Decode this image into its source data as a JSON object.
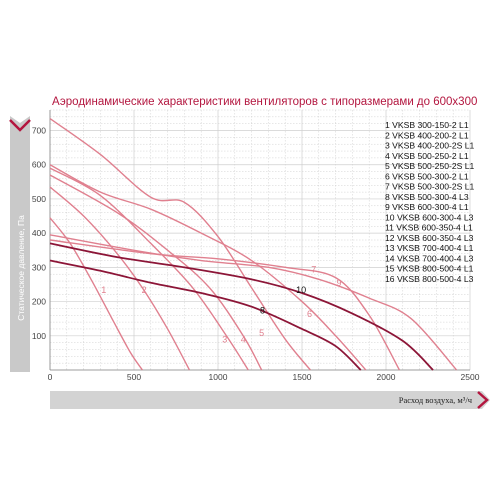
{
  "chart_data": {
    "type": "line",
    "title": "Аэродинамические характеристики вентиляторов с типоразмерами до 600х300",
    "xlabel": "Расход воздуха, м³/ч",
    "ylabel": "Статическое давление, Па",
    "xlim": [
      0,
      2500
    ],
    "ylim": [
      0,
      760
    ],
    "x_ticks": [
      "0",
      "500",
      "1000",
      "1500",
      "2000",
      "2500"
    ],
    "y_ticks": [
      "100",
      "200",
      "300",
      "400",
      "500",
      "600",
      "700"
    ],
    "grid": true,
    "legend_position": "top-right",
    "colors": {
      "accent": "#b3163f",
      "light_curve": "#e0808f",
      "dark_curve": "#8c1537",
      "grid": "#cfcfcf"
    },
    "legend": [
      "1 VKSB 300-150-2 L1",
      "2 VKSB 400-200-2 L1",
      "3 VKSB 400-200-2S L1",
      "4 VKSB 500-250-2 L1",
      "5 VKSB 500-250-2S L1",
      "6 VKSB 500-300-2 L1",
      "7 VKSB 500-300-2S L1",
      "8 VKSB 500-300-4 L3",
      "9 VKSB 600-300-4 L1",
      "10 VKSB 600-300-4 L3",
      "11 VKSB 600-350-4 L1",
      "12 VKSB 600-350-4 L3",
      "13 VKSB 700-400-4 L1",
      "14 VKSB 700-400-4 L3",
      "15 VKSB 800-500-4 L1",
      "16 VKSB 800-500-4 L3"
    ],
    "series": [
      {
        "label": "1",
        "shade": "light",
        "label_at": [
          320,
          225
        ],
        "x": [
          0,
          120,
          250,
          380,
          480,
          550
        ],
        "y": [
          445,
          370,
          260,
          140,
          50,
          0
        ]
      },
      {
        "label": "2",
        "shade": "light",
        "label_at": [
          560,
          225
        ],
        "x": [
          0,
          200,
          400,
          550,
          700,
          830
        ],
        "y": [
          535,
          450,
          340,
          240,
          120,
          0
        ]
      },
      {
        "label": "3",
        "shade": "light",
        "label_at": [
          1040,
          80
        ],
        "x": [
          0,
          300,
          600,
          850,
          1050,
          1180
        ],
        "y": [
          590,
          510,
          370,
          240,
          100,
          0
        ]
      },
      {
        "label": "4",
        "shade": "light",
        "label_at": [
          1150,
          80
        ],
        "x": [
          0,
          400,
          700,
          950,
          1150,
          1260
        ],
        "y": [
          570,
          460,
          350,
          240,
          100,
          0
        ]
      },
      {
        "label": "5",
        "shade": "light",
        "label_at": [
          1260,
          100
        ],
        "x": [
          0,
          300,
          600,
          800,
          1000,
          1200,
          1400,
          1550
        ],
        "y": [
          735,
          630,
          505,
          490,
          390,
          240,
          90,
          0
        ]
      },
      {
        "label": "6",
        "shade": "light",
        "label_at": [
          1545,
          155
        ],
        "x": [
          0,
          300,
          600,
          900,
          1200,
          1500,
          1700,
          1880
        ],
        "y": [
          600,
          520,
          470,
          400,
          320,
          200,
          100,
          0
        ]
      },
      {
        "label": "7",
        "shade": "light",
        "label_at": [
          1570,
          285
        ],
        "x": [
          0,
          600,
          1000,
          1400,
          1700,
          1900,
          2080
        ],
        "y": [
          380,
          340,
          325,
          300,
          270,
          160,
          0
        ]
      },
      {
        "label": "8",
        "shade": "dark",
        "label_at": [
          1265,
          165
        ],
        "x": [
          0,
          300,
          600,
          900,
          1200,
          1500,
          1700,
          1850
        ],
        "y": [
          320,
          290,
          255,
          225,
          185,
          120,
          70,
          0
        ]
      },
      {
        "label": "9",
        "shade": "light",
        "label_at": [
          1720,
          245
        ],
        "x": [
          0,
          500,
          900,
          1300,
          1600,
          1900,
          2150,
          2420
        ],
        "y": [
          395,
          350,
          320,
          300,
          265,
          210,
          150,
          0
        ]
      },
      {
        "label": "10",
        "shade": "dark",
        "label_at": [
          1495,
          225
        ],
        "x": [
          0,
          400,
          800,
          1200,
          1500,
          1800,
          2100,
          2280
        ],
        "y": [
          370,
          330,
          300,
          265,
          225,
          165,
          85,
          0
        ]
      }
    ]
  },
  "ui": {
    "ylabel_text": "Статическое давление, Па",
    "xlabel_text": "Расход воздуха, м³/ч"
  }
}
